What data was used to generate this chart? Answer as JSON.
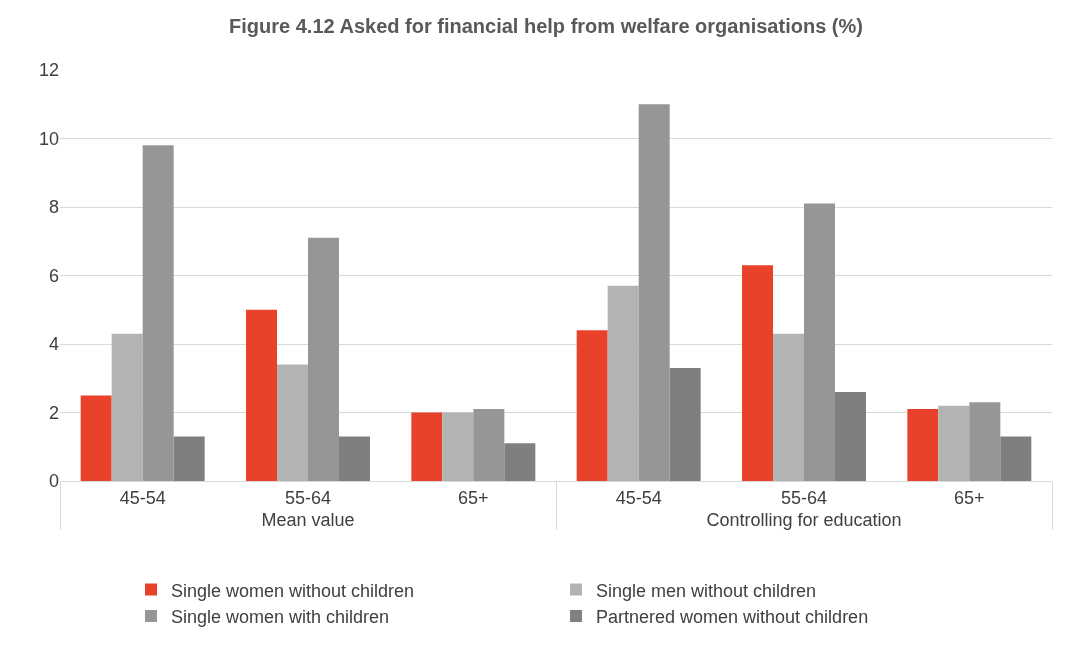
{
  "chart_data": {
    "type": "bar",
    "title": "Figure 4.12 Asked for financial help from welfare organisations (%)",
    "categories": [
      "45-54",
      "55-64",
      "65+",
      "45-54",
      "55-64",
      "65+"
    ],
    "annotations": [
      "Mean value",
      "Controlling for education"
    ],
    "series": [
      {
        "name": "Single women without children",
        "color": "#e8432a",
        "values": [
          2.5,
          5.0,
          2.0,
          4.4,
          6.3,
          2.1
        ]
      },
      {
        "name": "Single men without children",
        "color": "#b3b3b3",
        "values": [
          4.3,
          3.4,
          2.0,
          5.7,
          4.3,
          2.2
        ]
      },
      {
        "name": "Single women with children",
        "color": "#969696",
        "values": [
          9.8,
          7.1,
          2.1,
          11.0,
          8.1,
          2.3
        ]
      },
      {
        "name": "Partnered women without children",
        "color": "#7f7f7f",
        "values": [
          1.3,
          1.3,
          1.1,
          3.3,
          2.6,
          1.3
        ]
      }
    ],
    "ylim": [
      0,
      12
    ],
    "yticks": [
      0,
      2,
      4,
      6,
      8,
      10,
      12
    ],
    "grid": "y",
    "legend": "bottom"
  }
}
